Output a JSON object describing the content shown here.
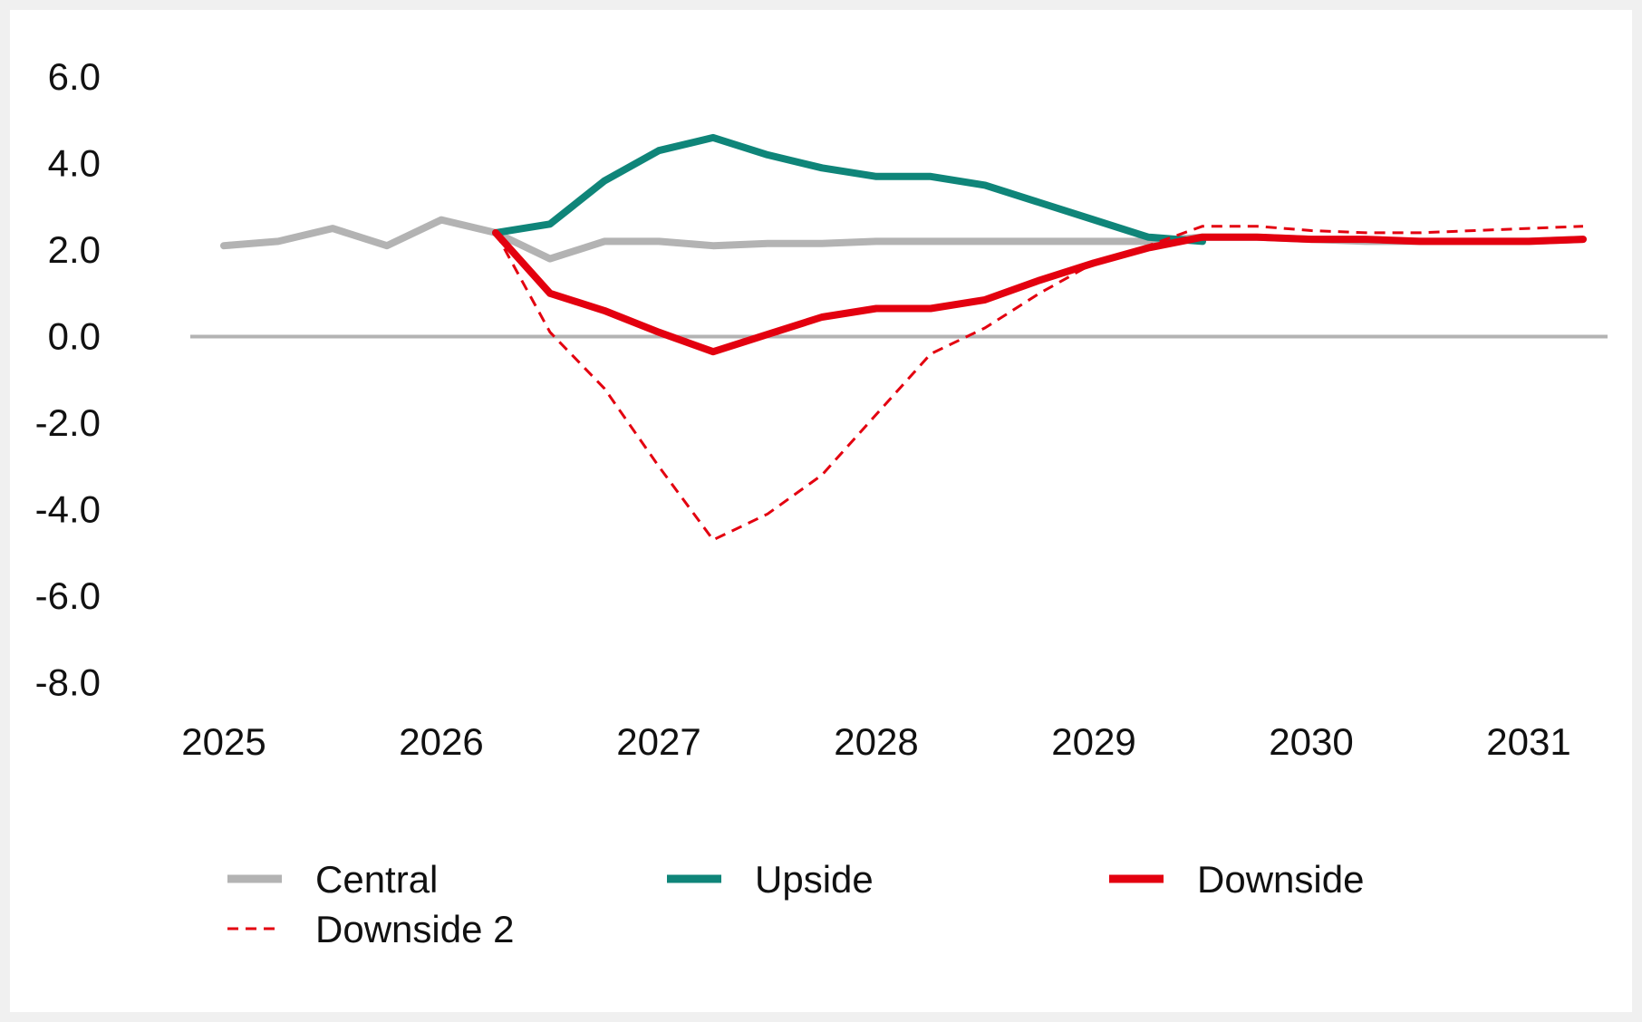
{
  "chart_data": {
    "type": "line",
    "title": "",
    "xlabel": "",
    "ylabel": "",
    "ylim": [
      -8,
      6
    ],
    "y_ticks": [
      "6.0",
      "4.0",
      "2.0",
      "0.0",
      "-2.0",
      "-4.0",
      "-6.0",
      "-8.0"
    ],
    "x_ticks": [
      "2025",
      "2026",
      "2027",
      "2028",
      "2029",
      "2030",
      "2031"
    ],
    "grid": false,
    "zero_line": true,
    "legend_position": "bottom",
    "series": [
      {
        "name": "Central",
        "color": "#b3b3b3",
        "style": "solid",
        "points": [
          [
            2025.0,
            2.1
          ],
          [
            2025.25,
            2.2
          ],
          [
            2025.5,
            2.5
          ],
          [
            2025.75,
            2.1
          ],
          [
            2026.0,
            2.7
          ],
          [
            2026.25,
            2.4
          ],
          [
            2026.5,
            1.8
          ],
          [
            2026.75,
            2.2
          ],
          [
            2027.0,
            2.2
          ],
          [
            2027.25,
            2.1
          ],
          [
            2027.5,
            2.15
          ],
          [
            2027.75,
            2.15
          ],
          [
            2028.0,
            2.2
          ],
          [
            2028.25,
            2.2
          ],
          [
            2028.5,
            2.2
          ],
          [
            2028.75,
            2.2
          ],
          [
            2029.0,
            2.2
          ],
          [
            2029.25,
            2.2
          ],
          [
            2029.5,
            2.3
          ],
          [
            2029.75,
            2.3
          ],
          [
            2030.0,
            2.25
          ],
          [
            2030.25,
            2.2
          ],
          [
            2030.5,
            2.2
          ],
          [
            2030.75,
            2.2
          ],
          [
            2031.0,
            2.2
          ],
          [
            2031.25,
            2.25
          ]
        ]
      },
      {
        "name": "Upside",
        "color": "#0f8579",
        "style": "solid",
        "points": [
          [
            2026.25,
            2.4
          ],
          [
            2026.5,
            2.6
          ],
          [
            2026.75,
            3.6
          ],
          [
            2027.0,
            4.3
          ],
          [
            2027.25,
            4.6
          ],
          [
            2027.5,
            4.2
          ],
          [
            2027.75,
            3.9
          ],
          [
            2028.0,
            3.7
          ],
          [
            2028.25,
            3.7
          ],
          [
            2028.5,
            3.5
          ],
          [
            2028.75,
            3.1
          ],
          [
            2029.0,
            2.7
          ],
          [
            2029.25,
            2.3
          ],
          [
            2029.5,
            2.2
          ]
        ]
      },
      {
        "name": "Downside",
        "color": "#e3000f",
        "style": "solid",
        "points": [
          [
            2026.25,
            2.4
          ],
          [
            2026.5,
            1.0
          ],
          [
            2026.75,
            0.6
          ],
          [
            2027.0,
            0.1
          ],
          [
            2027.25,
            -0.35
          ],
          [
            2027.5,
            0.05
          ],
          [
            2027.75,
            0.45
          ],
          [
            2028.0,
            0.65
          ],
          [
            2028.25,
            0.65
          ],
          [
            2028.5,
            0.85
          ],
          [
            2028.75,
            1.3
          ],
          [
            2029.0,
            1.7
          ],
          [
            2029.25,
            2.05
          ],
          [
            2029.5,
            2.3
          ],
          [
            2029.75,
            2.3
          ],
          [
            2030.0,
            2.25
          ],
          [
            2030.25,
            2.25
          ],
          [
            2030.5,
            2.2
          ],
          [
            2030.75,
            2.2
          ],
          [
            2031.0,
            2.2
          ],
          [
            2031.25,
            2.25
          ]
        ]
      },
      {
        "name": "Downside 2",
        "color": "#e3000f",
        "style": "dashed",
        "points": [
          [
            2026.25,
            2.4
          ],
          [
            2026.5,
            0.1
          ],
          [
            2026.75,
            -1.2
          ],
          [
            2027.0,
            -3.0
          ],
          [
            2027.25,
            -4.7
          ],
          [
            2027.5,
            -4.1
          ],
          [
            2027.75,
            -3.2
          ],
          [
            2028.0,
            -1.8
          ],
          [
            2028.25,
            -0.4
          ],
          [
            2028.5,
            0.2
          ],
          [
            2028.75,
            1.0
          ],
          [
            2029.0,
            1.7
          ],
          [
            2029.25,
            2.1
          ],
          [
            2029.5,
            2.55
          ],
          [
            2029.75,
            2.55
          ],
          [
            2030.0,
            2.45
          ],
          [
            2030.25,
            2.4
          ],
          [
            2030.5,
            2.4
          ],
          [
            2030.75,
            2.45
          ],
          [
            2031.0,
            2.5
          ],
          [
            2031.25,
            2.55
          ]
        ]
      }
    ]
  }
}
